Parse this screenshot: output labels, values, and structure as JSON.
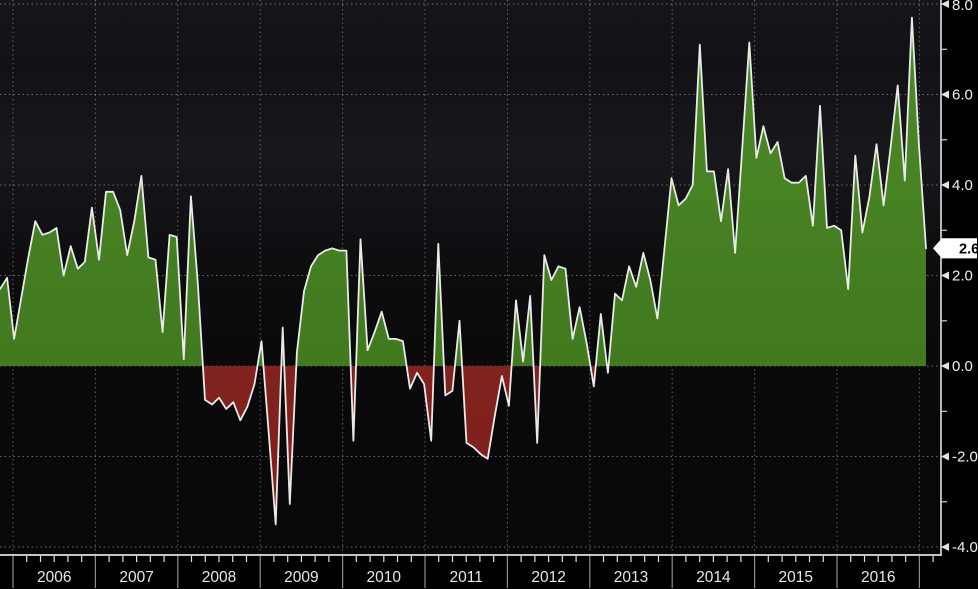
{
  "chart_data": {
    "type": "area",
    "title": "",
    "description": "Year-over-year percent change, monthly series with positive values filled green and negative values filled dark red on a black terminal-style background",
    "frequency": "monthly",
    "series": [
      {
        "name": "yoy-percent-change",
        "values": [
          1.7,
          1.95,
          0.6,
          1.5,
          2.4,
          3.2,
          2.9,
          2.95,
          3.05,
          2.0,
          2.65,
          2.15,
          2.3,
          3.5,
          2.35,
          3.85,
          3.85,
          3.45,
          2.45,
          3.2,
          4.2,
          2.4,
          2.35,
          0.75,
          2.9,
          2.85,
          0.15,
          3.75,
          1.8,
          -0.75,
          -0.85,
          -0.7,
          -0.95,
          -0.8,
          -1.2,
          -0.9,
          -0.4,
          0.55,
          -1.45,
          -3.5,
          0.85,
          -3.05,
          0.3,
          1.65,
          2.2,
          2.45,
          2.55,
          2.6,
          2.55,
          2.55,
          -1.65,
          2.8,
          0.35,
          0.75,
          1.2,
          0.6,
          0.6,
          0.55,
          -0.5,
          -0.15,
          -0.4,
          -1.65,
          2.7,
          -0.65,
          -0.55,
          1.0,
          -1.7,
          -1.8,
          -1.95,
          -2.05,
          -1.1,
          -0.22,
          -0.88,
          1.45,
          0.1,
          1.55,
          -1.7,
          2.45,
          1.9,
          2.2,
          2.15,
          0.6,
          1.3,
          0.5,
          -0.45,
          1.15,
          -0.15,
          1.6,
          1.45,
          2.2,
          1.75,
          2.5,
          1.9,
          1.05,
          2.6,
          4.15,
          3.55,
          3.7,
          4.0,
          7.1,
          4.3,
          4.3,
          3.2,
          4.35,
          2.5,
          4.8,
          7.15,
          4.6,
          5.3,
          4.7,
          4.95,
          4.15,
          4.05,
          4.05,
          4.2,
          3.1,
          5.75,
          3.05,
          3.1,
          3.0,
          1.7,
          4.65,
          2.95,
          3.75,
          4.9,
          3.55,
          4.85,
          6.2,
          4.1,
          7.7,
          4.9,
          2.6
        ]
      }
    ],
    "last_value": 2.6,
    "last_value_label": "2.6",
    "x_axis": {
      "years": [
        "2006",
        "2007",
        "2008",
        "2009",
        "2010",
        "2011",
        "2012",
        "2013",
        "2014",
        "2015",
        "2016"
      ],
      "minor_ticks_per_year": 6,
      "note": "series begins left of the 2006 boundary (late 2005) and ends just past the 2016 band"
    },
    "y_axis": {
      "side": "right",
      "min": -4.0,
      "max": 8.0,
      "major_tick_values": [
        8,
        6,
        4,
        2,
        0,
        -2,
        -4
      ],
      "major_tick_labels": [
        "8.0",
        "6.0",
        "4.0",
        "2.0",
        "0.0",
        "-2.0",
        "-4.0"
      ],
      "minor_tick_values": [
        7,
        5,
        3,
        1,
        -1,
        -3
      ]
    },
    "grid": {
      "horizontal": true,
      "vertical": true,
      "style": "dotted"
    },
    "colors": {
      "positive_fill_top": "#4c8a27",
      "positive_fill_bottom": "#3d721c",
      "negative_fill_top": "#922a25",
      "negative_fill_bottom": "#7c1f1b",
      "line": "#e9e9e9",
      "grid": "#8f8f8f",
      "axis": "#e2e2e2",
      "tick_label_text": "#efefef",
      "year_label_text": "#e8e8e8",
      "badge_background": "#ffffff",
      "badge_text": "#000000",
      "plot_bg_top": "#16161a",
      "plot_bg_mid": "#18181c",
      "plot_bg_bottom": "#08080a"
    }
  }
}
